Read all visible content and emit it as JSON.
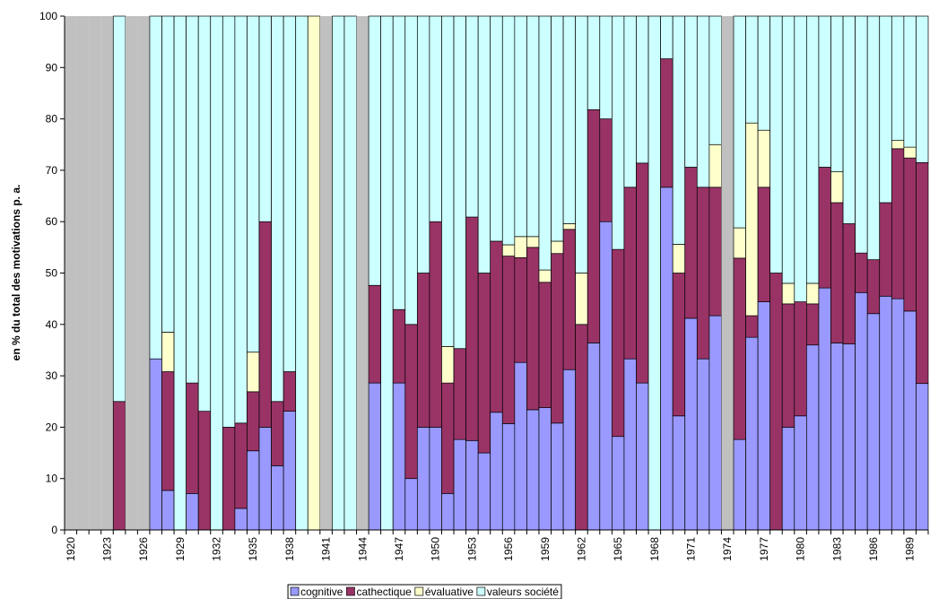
{
  "chart_data": {
    "type": "stacked_bar",
    "y_label": "en % du total des motivations p. a.",
    "categories": [
      "1920",
      null,
      null,
      "1923",
      null,
      null,
      "1926",
      null,
      null,
      "1929",
      null,
      null,
      "1932",
      null,
      null,
      "1935",
      null,
      null,
      "1938",
      null,
      null,
      "1941",
      null,
      null,
      "1944",
      null,
      null,
      "1947",
      null,
      null,
      "1950",
      null,
      null,
      "1953",
      null,
      null,
      "1956",
      null,
      null,
      "1959",
      null,
      null,
      "1962",
      null,
      null,
      "1965",
      null,
      null,
      "1968",
      null,
      null,
      "1971",
      null,
      null,
      "1974",
      null,
      null,
      "1977",
      null,
      null,
      "1980",
      null,
      null,
      "1983",
      null,
      null,
      "1986",
      null,
      null,
      "1989",
      null
    ],
    "series": [
      {
        "name": "cognitive",
        "color": "#9999ff",
        "values": [
          null,
          null,
          null,
          null,
          0,
          null,
          null,
          33.3,
          7.7,
          0,
          7.1,
          0,
          0,
          0,
          4.2,
          15.4,
          20,
          12.5,
          23.1,
          0,
          0,
          null,
          0,
          0,
          null,
          28.6,
          0,
          28.6,
          10,
          20,
          20,
          7.1,
          17.6,
          17.4,
          15,
          22.9,
          20.7,
          32.6,
          23.4,
          23.8,
          20.8,
          31.2,
          0,
          36.4,
          60,
          18.2,
          33.3,
          28.6,
          0,
          66.7,
          22.2,
          41.2,
          33.3,
          41.7,
          null,
          17.6,
          37.5,
          44.4,
          0,
          20,
          22.2,
          36,
          47.1,
          36.4,
          36.2,
          46.2,
          42.1,
          45.5,
          45,
          42.6,
          28.5
        ]
      },
      {
        "name": "cathectique",
        "color": "#993366",
        "values": [
          null,
          null,
          null,
          null,
          25,
          null,
          null,
          0,
          23.1,
          0,
          21.5,
          23.1,
          0,
          20,
          16.6,
          11.5,
          40,
          12.5,
          7.7,
          0,
          0,
          null,
          0,
          0,
          null,
          19,
          0,
          14.3,
          30,
          30,
          40,
          21.5,
          17.7,
          43.5,
          35,
          33.3,
          32.6,
          20.4,
          31.6,
          24.4,
          33,
          27.3,
          40,
          45.4,
          20,
          36.4,
          33.4,
          42.8,
          0,
          25,
          27.8,
          29.4,
          33.4,
          25,
          null,
          35.3,
          4.2,
          22.3,
          50,
          24,
          22.2,
          8,
          23.5,
          27.3,
          23.4,
          7.7,
          10.5,
          18.2,
          29.2,
          29.8,
          43
        ]
      },
      {
        "name": "évaluative",
        "color": "#ffffcc",
        "values": [
          null,
          null,
          null,
          null,
          0,
          null,
          null,
          0,
          7.7,
          0,
          0,
          0,
          0,
          0,
          0,
          7.7,
          0,
          0,
          0,
          0,
          100,
          null,
          0,
          0,
          null,
          0,
          0,
          0,
          0,
          0,
          0,
          7.1,
          0,
          0,
          0,
          0,
          2.2,
          4.1,
          2.1,
          2.4,
          2.4,
          1.1,
          10,
          0,
          0,
          0,
          0,
          0,
          0,
          0,
          5.6,
          0,
          0,
          8.3,
          null,
          5.9,
          37.5,
          11.1,
          0,
          4,
          0,
          4,
          0,
          6,
          0,
          0,
          0,
          0,
          1.6,
          2.1,
          0
        ]
      },
      {
        "name": "valeurs société",
        "color": "#ccffff",
        "values": [
          null,
          null,
          null,
          null,
          75,
          null,
          null,
          66.7,
          61.5,
          100,
          71.4,
          76.9,
          100,
          80,
          79.2,
          65.4,
          40,
          75,
          69.2,
          100,
          0,
          null,
          100,
          100,
          null,
          52.4,
          100,
          57.1,
          60,
          50,
          40,
          64.3,
          64.7,
          39.1,
          50,
          43.8,
          44.5,
          42.9,
          42.9,
          49.4,
          43.8,
          40.4,
          50,
          18.2,
          20,
          45.4,
          33.3,
          28.6,
          100,
          8.3,
          44.4,
          29.4,
          33.3,
          25,
          null,
          41.2,
          20.8,
          22.2,
          50,
          52,
          55.6,
          52,
          29.4,
          30.3,
          40.4,
          46.1,
          47.4,
          36.3,
          24.2,
          25.5,
          28.5
        ]
      }
    ],
    "missing_color": "#c0c0c0",
    "ylim": [
      0,
      100
    ],
    "yticks": [
      0,
      10,
      20,
      30,
      40,
      50,
      60,
      70,
      80,
      90,
      100
    ],
    "legend": "bottom"
  }
}
